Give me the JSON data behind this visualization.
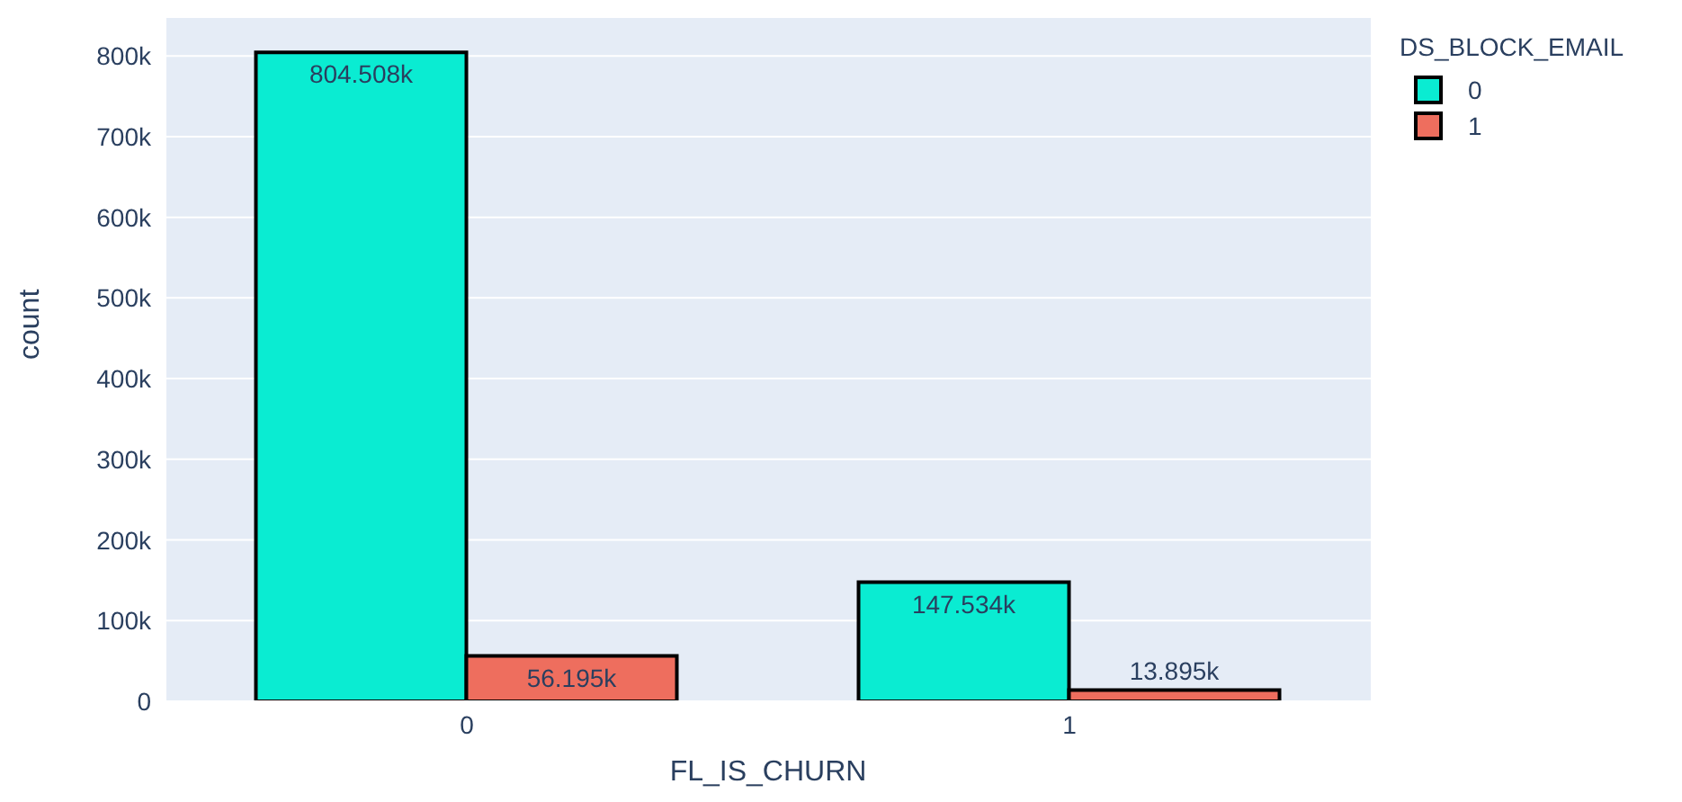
{
  "chart_data": {
    "type": "bar",
    "xlabel": "FL_IS_CHURN",
    "ylabel": "count",
    "legend_title": "DS_BLOCK_EMAIL",
    "categories": [
      "0",
      "1"
    ],
    "series": [
      {
        "name": "0",
        "color": "#0aecd2",
        "values": [
          804508,
          147534
        ],
        "value_labels": [
          "804.508k",
          "147.534k"
        ]
      },
      {
        "name": "1",
        "color": "#ee6e5e",
        "values": [
          56195,
          13895
        ],
        "value_labels": [
          "56.195k",
          "13.895k"
        ]
      }
    ],
    "ylim": [
      0,
      847000
    ],
    "yticks": [
      0,
      {
        "value": 100000,
        "label": "100k"
      },
      {
        "value": 200000,
        "label": "200k"
      },
      {
        "value": 300000,
        "label": "300k"
      },
      {
        "value": 400000,
        "label": "400k"
      },
      {
        "value": 500000,
        "label": "500k"
      },
      {
        "value": 600000,
        "label": "600k"
      },
      {
        "value": 700000,
        "label": "700k"
      },
      {
        "value": 800000,
        "label": "800k"
      }
    ],
    "grid": "y",
    "legend": "top right"
  }
}
